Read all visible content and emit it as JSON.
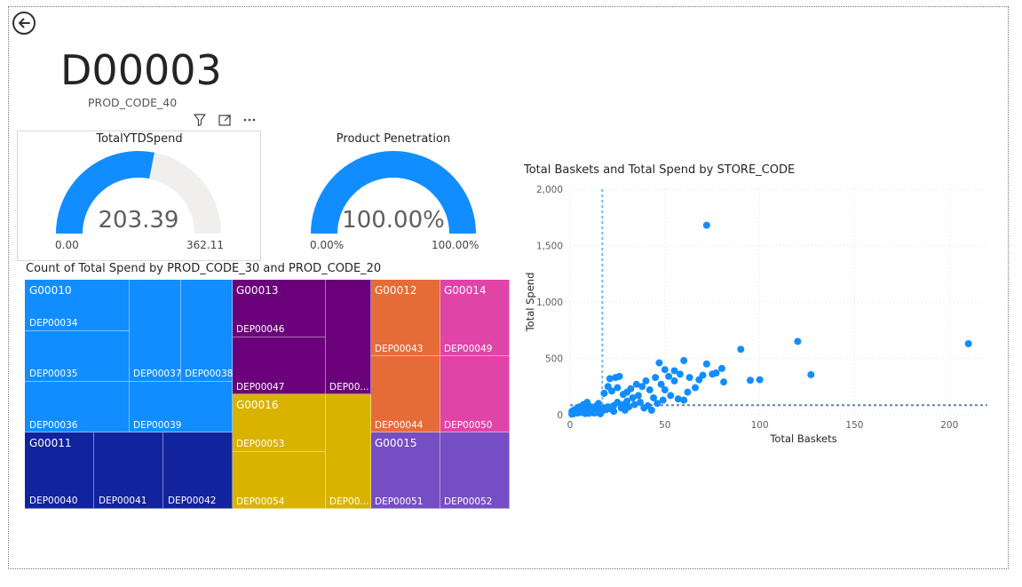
{
  "header": {
    "title": "D00003",
    "subtitle": "PROD_CODE_40"
  },
  "icons": {
    "back": "back-arrow-circle-icon",
    "filter": "filter-icon",
    "focus": "focus-mode-icon",
    "more": "more-options-icon"
  },
  "gauge_ytd": {
    "title": "TotalYTDSpend",
    "value_label": "203.39",
    "min_label": "0.00",
    "max_label": "362.11",
    "value": 203.39,
    "min": 0,
    "max": 362.11,
    "fill_color": "#118DFF",
    "track_color": "#F0EFEE"
  },
  "gauge_pen": {
    "title": "Product Penetration",
    "value_label": "100.00%",
    "min_label": "0.00%",
    "max_label": "100.00%",
    "value": 100,
    "min": 0,
    "max": 100,
    "fill_color": "#118DFF",
    "track_color": "#F0EFEE"
  },
  "treemap": {
    "title": "Count of Total Spend by PROD_CODE_30 and PROD_CODE_20",
    "groups": {
      "G00010": "G00010",
      "G00011": "G00011",
      "G00013": "G00013",
      "G00016": "G00016",
      "G00012": "G00012",
      "G00014": "G00014",
      "G00015": "G00015"
    },
    "departments": {
      "DEP00034": "DEP00034",
      "DEP00035": "DEP00035",
      "DEP00036": "DEP00036",
      "DEP00037": "DEP00037",
      "DEP00038": "DEP00038",
      "DEP00039": "DEP00039",
      "DEP00040": "DEP00040",
      "DEP00041": "DEP00041",
      "DEP00042": "DEP00042",
      "DEP00046": "DEP00046",
      "DEP00047": "DEP00047",
      "DEP00048_trunc": "DEP00...",
      "DEP00053": "DEP00053",
      "DEP00054": "DEP00054",
      "DEP00055_trunc": "DEP00...",
      "DEP00043": "DEP00043",
      "DEP00044": "DEP00044",
      "DEP00049": "DEP00049",
      "DEP00050": "DEP00050",
      "DEP00051": "DEP00051",
      "DEP00052": "DEP00052"
    },
    "colors": {
      "G00010": "#118DFF",
      "G00011": "#12239E",
      "G00013": "#6B007B",
      "G00016": "#D9B300",
      "G00012": "#E66C37",
      "G00014": "#E044A7",
      "G00015": "#744EC2"
    }
  },
  "chart_data": {
    "type": "scatter",
    "title": "Total Baskets and Total Spend by STORE_CODE",
    "xlabel": "Total Baskets",
    "ylabel": "Total Spend",
    "xlim": [
      0,
      220
    ],
    "ylim": [
      0,
      2000
    ],
    "x_ticks": [
      0,
      50,
      100,
      150,
      200
    ],
    "y_ticks": [
      0,
      500,
      1000,
      1500,
      2000
    ],
    "x_tick_labels": [
      "0",
      "50",
      "100",
      "150",
      "200"
    ],
    "y_tick_labels": [
      "0",
      "500",
      "1,000",
      "1,500",
      "2,000"
    ],
    "grid": true,
    "point_color": "#118DFF",
    "reference_lines": {
      "x": 17,
      "y": 85
    },
    "points": [
      [
        72,
        1680
      ],
      [
        120,
        650
      ],
      [
        210,
        630
      ],
      [
        90,
        580
      ],
      [
        127,
        355
      ],
      [
        100,
        310
      ],
      [
        95,
        305
      ],
      [
        72,
        450
      ],
      [
        80,
        410
      ],
      [
        77,
        370
      ],
      [
        60,
        480
      ],
      [
        55,
        390
      ],
      [
        50,
        400
      ],
      [
        47,
        460
      ],
      [
        52,
        340
      ],
      [
        58,
        360
      ],
      [
        63,
        330
      ],
      [
        70,
        350
      ],
      [
        75,
        360
      ],
      [
        81,
        290
      ],
      [
        68,
        310
      ],
      [
        62,
        200
      ],
      [
        66,
        240
      ],
      [
        55,
        300
      ],
      [
        45,
        330
      ],
      [
        48,
        270
      ],
      [
        40,
        300
      ],
      [
        38,
        250
      ],
      [
        42,
        220
      ],
      [
        35,
        270
      ],
      [
        32,
        230
      ],
      [
        30,
        200
      ],
      [
        28,
        180
      ],
      [
        25,
        240
      ],
      [
        22,
        210
      ],
      [
        20,
        250
      ],
      [
        18,
        190
      ],
      [
        26,
        340
      ],
      [
        24,
        330
      ],
      [
        21,
        320
      ],
      [
        36,
        170
      ],
      [
        33,
        150
      ],
      [
        44,
        150
      ],
      [
        50,
        220
      ],
      [
        60,
        130
      ],
      [
        30,
        120
      ],
      [
        28,
        90
      ],
      [
        25,
        110
      ],
      [
        23,
        80
      ],
      [
        20,
        70
      ],
      [
        18,
        60
      ],
      [
        16,
        50
      ],
      [
        15,
        100
      ],
      [
        14,
        80
      ],
      [
        13,
        60
      ],
      [
        12,
        40
      ],
      [
        11,
        70
      ],
      [
        10,
        50
      ],
      [
        9,
        30
      ],
      [
        8,
        60
      ],
      [
        7,
        40
      ],
      [
        6,
        20
      ],
      [
        5,
        30
      ],
      [
        4,
        15
      ],
      [
        3,
        25
      ],
      [
        2,
        10
      ],
      [
        1,
        5
      ],
      [
        3,
        50
      ],
      [
        5,
        70
      ],
      [
        7,
        90
      ],
      [
        9,
        110
      ],
      [
        11,
        20
      ],
      [
        13,
        15
      ],
      [
        15,
        25
      ],
      [
        17,
        35
      ],
      [
        19,
        45
      ],
      [
        21,
        55
      ],
      [
        23,
        30
      ],
      [
        27,
        60
      ],
      [
        29,
        40
      ],
      [
        31,
        70
      ],
      [
        34,
        90
      ],
      [
        37,
        110
      ],
      [
        39,
        60
      ],
      [
        41,
        80
      ],
      [
        43,
        40
      ],
      [
        46,
        100
      ],
      [
        49,
        130
      ],
      [
        53,
        170
      ],
      [
        57,
        140
      ],
      [
        2,
        40
      ],
      [
        4,
        45
      ],
      [
        6,
        55
      ],
      [
        8,
        10
      ],
      [
        10,
        12
      ],
      [
        12,
        18
      ],
      [
        14,
        22
      ],
      [
        16,
        8
      ],
      [
        1,
        30
      ],
      [
        2,
        20
      ]
    ]
  }
}
